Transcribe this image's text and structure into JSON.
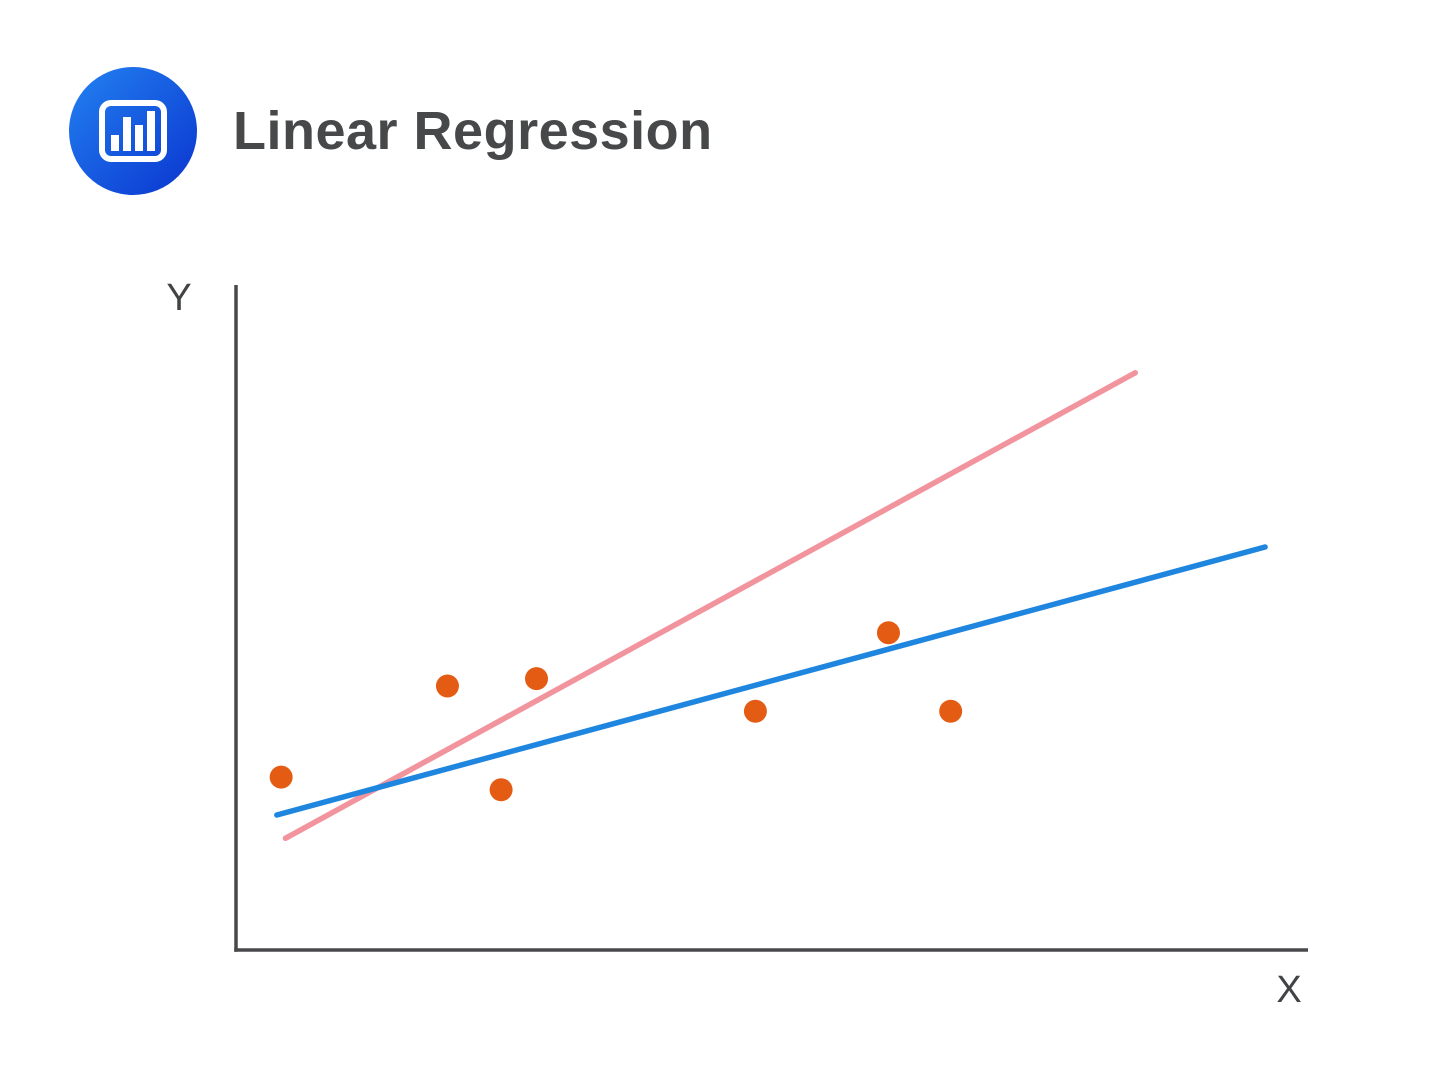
{
  "header": {
    "title": "Linear Regression",
    "icon": "bar-chart-icon",
    "icon_gradient": [
      "#2382f1",
      "#0a34cf"
    ]
  },
  "chart_data": {
    "type": "scatter",
    "title": "Linear Regression",
    "xlabel": "X",
    "ylabel": "Y",
    "xlim": [
      0,
      10
    ],
    "ylim": [
      0,
      10
    ],
    "grid": false,
    "tick_labels": false,
    "legend": false,
    "axis_color": "#48494b",
    "label_color": "#414345",
    "point_color": "#e45c14",
    "points": [
      {
        "x": 0.43,
        "y": 2.6
      },
      {
        "x": 1.98,
        "y": 3.97
      },
      {
        "x": 2.48,
        "y": 2.41
      },
      {
        "x": 2.81,
        "y": 4.08
      },
      {
        "x": 4.85,
        "y": 3.59
      },
      {
        "x": 6.09,
        "y": 4.77
      },
      {
        "x": 6.67,
        "y": 3.59
      }
    ],
    "lines": [
      {
        "name": "candidate-line-pink",
        "color": "#f2949d",
        "x1": 0.47,
        "y1": 1.68,
        "x2": 8.39,
        "y2": 8.68
      },
      {
        "name": "best-fit-line-blue",
        "color": "#1f86e0",
        "x1": 0.39,
        "y1": 2.03,
        "x2": 9.6,
        "y2": 6.06
      }
    ]
  }
}
